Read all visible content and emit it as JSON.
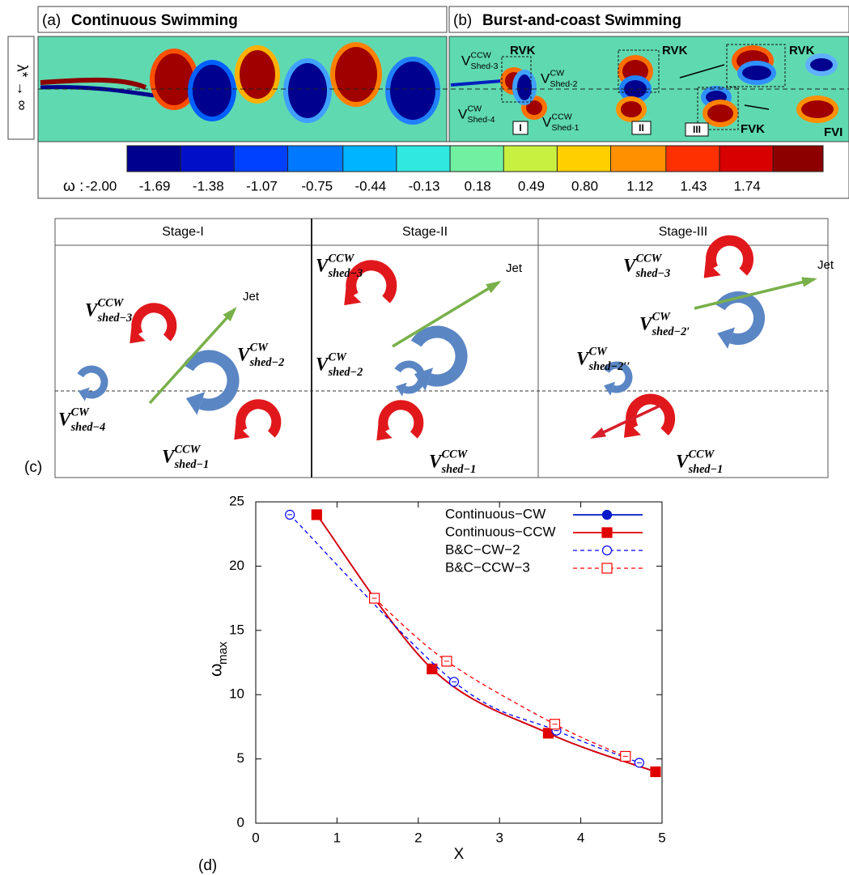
{
  "panel_a": {
    "label": "(a)",
    "title": "Continuous Swimming"
  },
  "panel_b": {
    "label": "(b)",
    "title": "Burst-and-coast Swimming",
    "tags": [
      "RVK",
      "RVK",
      "RVK",
      "FVK",
      "FVI"
    ],
    "stages": [
      "I",
      "II",
      "III"
    ],
    "vortices": [
      {
        "base": "V",
        "sup": "CCW",
        "sub": "Shed-3"
      },
      {
        "base": "V",
        "sup": "CW",
        "sub": "Shed-2"
      },
      {
        "base": "V",
        "sup": "CW",
        "sub": "Shed-4"
      },
      {
        "base": "V",
        "sup": "CCW",
        "sub": "Shed-1"
      }
    ]
  },
  "side_label": "λ* → ∞",
  "colorbar": {
    "symbol": "ω :",
    "clim": [
      -2.0,
      2.03
    ],
    "ticks": [
      {
        "value": -2.0,
        "label": "-2.00"
      },
      -1.69,
      -1.38,
      -1.07,
      -0.75,
      -0.44,
      -0.13,
      0.18,
      0.49,
      {
        "value": 0.8,
        "label": "0.80"
      },
      1.12,
      1.43,
      1.74
    ],
    "colors": [
      "#00008f",
      "#0010c8",
      "#0040ff",
      "#0078ff",
      "#00b4ff",
      "#30e8e0",
      "#70f0a0",
      "#c8f040",
      "#ffd000",
      "#ff9000",
      "#ff3000",
      "#d80000",
      "#8c0000"
    ]
  },
  "panel_c": {
    "label": "(c)",
    "stages": [
      "Stage-I",
      "Stage-II",
      "Stage-III"
    ],
    "jet": [
      "Jet",
      "Jet",
      "Jet"
    ],
    "vortices": [
      {
        "base": "V",
        "sup": "CW",
        "sub": "shed−4"
      },
      {
        "base": "V",
        "sup": "CCW",
        "sub": "shed−3"
      },
      {
        "base": "V",
        "sup": "CW",
        "sub": "shed−2"
      },
      {
        "base": "V",
        "sup": "CCW",
        "sub": "shed−1"
      },
      {
        "base": "V",
        "sup": "CCW",
        "sub": "shed−3"
      },
      {
        "base": "V",
        "sup": "CW",
        "sub": "shed−2"
      },
      {
        "base": "V",
        "sup": "CCW",
        "sub": "shed−1"
      },
      {
        "base": "V",
        "sup": "CCW",
        "sub": "shed−3"
      },
      {
        "base": "V",
        "sup": "CW",
        "sub": "shed−2′"
      },
      {
        "base": "V",
        "sup": "CW",
        "sub": "shed−2′′"
      },
      {
        "base": "V",
        "sup": "CCW",
        "sub": "shed−1"
      }
    ]
  },
  "chart_data": {
    "type": "line",
    "panel_label": "(d)",
    "x_label": "X",
    "y_label": "ω",
    "y_label_sub": "max",
    "xlim": [
      0,
      5
    ],
    "xticks": [
      0,
      1,
      2,
      3,
      4,
      5
    ],
    "ylim": [
      0,
      25
    ],
    "yticks": [
      0,
      5,
      10,
      15,
      20,
      25
    ],
    "legend": "upper right",
    "series": [
      {
        "name": "Continuous−CW",
        "color": "#0018c8",
        "dash": false,
        "marker": "filled-circle",
        "x": [
          0.75,
          2.17,
          3.6,
          4.92
        ],
        "values": [
          24,
          12,
          7,
          4
        ]
      },
      {
        "name": "Continuous−CCW",
        "color": "#e00000",
        "dash": false,
        "marker": "filled-square",
        "x": [
          0.75,
          2.17,
          3.6,
          4.92
        ],
        "values": [
          24,
          12,
          7,
          4
        ]
      },
      {
        "name": "B&C−CW−2",
        "color": "#0000ff",
        "dash": true,
        "marker": "open-circle",
        "x": [
          0.42,
          2.44,
          3.7,
          4.72
        ],
        "values": [
          24,
          11,
          7.2,
          4.7
        ]
      },
      {
        "name": "B&C−CCW−3",
        "color": "#ff0000",
        "dash": true,
        "marker": "open-square",
        "x": [
          1.46,
          2.35,
          3.68,
          4.55
        ],
        "values": [
          17.5,
          12.6,
          7.7,
          5.2
        ]
      }
    ]
  }
}
